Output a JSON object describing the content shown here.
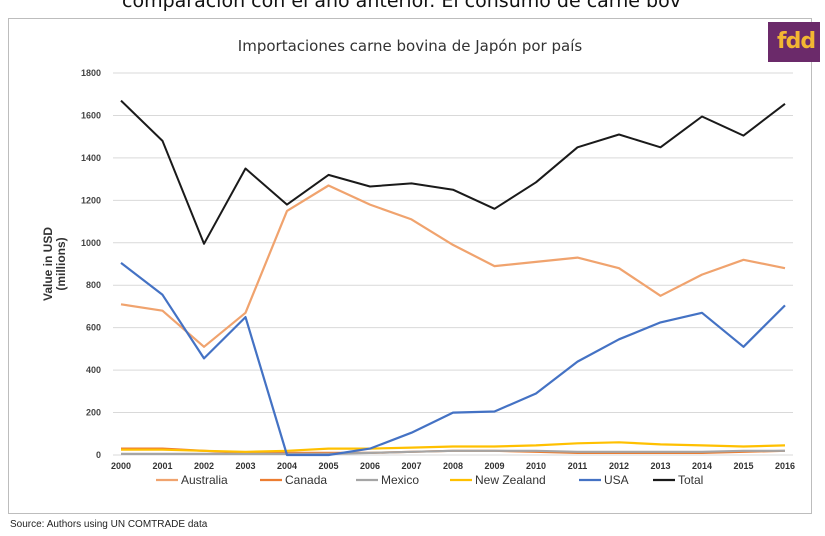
{
  "caption_fragment": "comparación con el año anterior. El consumo de carne bov",
  "logo_text": "fdd",
  "source_note": "Source: Authors using UN COMTRADE data",
  "colors": {
    "Australia": "#f0a36e",
    "Canada": "#ec7d31",
    "Mexico": "#a5a5a5",
    "New Zealand": "#ffc000",
    "USA": "#4472c4",
    "Total": "#1a1a1a",
    "logo_bg": "#6b2a6a",
    "logo_text": "#f2b632"
  },
  "chart_data": {
    "type": "line",
    "title": "Importaciones carne bovina de Japón por país",
    "ylabel": "Value in USD (millions)",
    "xlabel": "",
    "ylim": [
      0,
      1800
    ],
    "yticks": [
      0,
      200,
      400,
      600,
      800,
      1000,
      1200,
      1400,
      1600,
      1800
    ],
    "x": [
      "2000",
      "2001",
      "2002",
      "2003",
      "2004",
      "2005",
      "2006",
      "2007",
      "2008",
      "2009",
      "2010",
      "2011",
      "2012",
      "2013",
      "2014",
      "2015",
      "2016"
    ],
    "grid": true,
    "legend_position": "bottom",
    "series": [
      {
        "name": "Australia",
        "values": [
          710,
          680,
          510,
          670,
          1150,
          1270,
          1180,
          1110,
          990,
          890,
          910,
          930,
          880,
          750,
          850,
          920,
          880
        ]
      },
      {
        "name": "Canada",
        "values": [
          30,
          30,
          20,
          10,
          10,
          10,
          10,
          15,
          20,
          20,
          15,
          10,
          10,
          10,
          10,
          15,
          20
        ]
      },
      {
        "name": "Mexico",
        "values": [
          5,
          5,
          5,
          5,
          5,
          5,
          10,
          15,
          20,
          20,
          20,
          15,
          15,
          15,
          15,
          20,
          20
        ]
      },
      {
        "name": "New Zealand",
        "values": [
          25,
          25,
          20,
          15,
          20,
          30,
          30,
          35,
          40,
          40,
          45,
          55,
          60,
          50,
          45,
          40,
          45
        ]
      },
      {
        "name": "USA",
        "values": [
          905,
          755,
          455,
          650,
          0,
          0,
          30,
          105,
          200,
          205,
          290,
          440,
          545,
          625,
          670,
          510,
          705
        ]
      },
      {
        "name": "Total",
        "values": [
          1670,
          1480,
          995,
          1350,
          1180,
          1320,
          1265,
          1280,
          1250,
          1160,
          1285,
          1450,
          1510,
          1450,
          1595,
          1505,
          1655
        ]
      }
    ]
  }
}
